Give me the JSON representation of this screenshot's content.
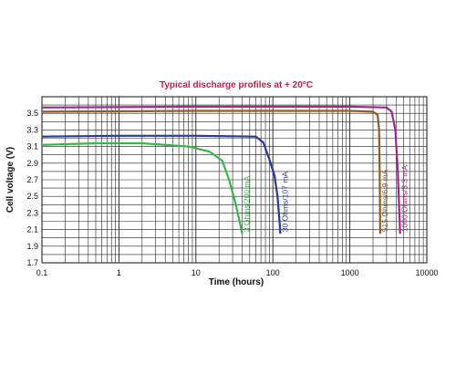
{
  "chart_data": {
    "type": "line",
    "title": "Typical discharge profiles at + 20°C",
    "title_color": "#c0204a",
    "xlabel": "Time (hours)",
    "ylabel": "Cell voltage (V)",
    "x_scale": "log",
    "xlim": [
      0.1,
      10000
    ],
    "ylim": [
      1.7,
      3.7
    ],
    "x_ticks": [
      "0.1",
      "1",
      "10",
      "100",
      "1000",
      "10000"
    ],
    "y_ticks": [
      "1.7",
      "1.9",
      "2.1",
      "2.3",
      "2.5",
      "2.7",
      "2.9",
      "3.1",
      "3.3",
      "3.5"
    ],
    "grid": true,
    "series": [
      {
        "name": "3 Ohms/200 mA",
        "color": "#3bb54a",
        "points": [
          [
            0.1,
            3.12
          ],
          [
            0.5,
            3.14
          ],
          [
            2,
            3.14
          ],
          [
            8,
            3.1
          ],
          [
            15,
            3.04
          ],
          [
            22,
            2.93
          ],
          [
            27,
            2.7
          ],
          [
            33,
            2.4
          ],
          [
            38,
            2.15
          ],
          [
            40,
            2.05
          ]
        ]
      },
      {
        "name": "30 Ohms/107 mA",
        "color": "#2b3990",
        "points": [
          [
            0.1,
            3.22
          ],
          [
            1,
            3.23
          ],
          [
            10,
            3.23
          ],
          [
            60,
            3.22
          ],
          [
            75,
            3.15
          ],
          [
            90,
            2.95
          ],
          [
            105,
            2.75
          ],
          [
            115,
            2.5
          ],
          [
            122,
            2.2
          ],
          [
            125,
            2.05
          ]
        ]
      },
      {
        "name": "515 Ohms/6.9 mA",
        "color": "#8b5e2a",
        "points": [
          [
            0.1,
            3.52
          ],
          [
            10,
            3.53
          ],
          [
            100,
            3.53
          ],
          [
            1000,
            3.53
          ],
          [
            2000,
            3.52
          ],
          [
            2300,
            3.48
          ],
          [
            2400,
            3.3
          ],
          [
            2450,
            2.7
          ],
          [
            2480,
            2.05
          ]
        ]
      },
      {
        "name": "1000 Ohms/3.3 mA",
        "color": "#9b2a8c",
        "points": [
          [
            0.1,
            3.57
          ],
          [
            10,
            3.58
          ],
          [
            100,
            3.58
          ],
          [
            1000,
            3.58
          ],
          [
            3000,
            3.57
          ],
          [
            3500,
            3.52
          ],
          [
            3900,
            3.3
          ],
          [
            4200,
            2.8
          ],
          [
            4400,
            2.3
          ],
          [
            4500,
            2.05
          ]
        ]
      }
    ]
  }
}
